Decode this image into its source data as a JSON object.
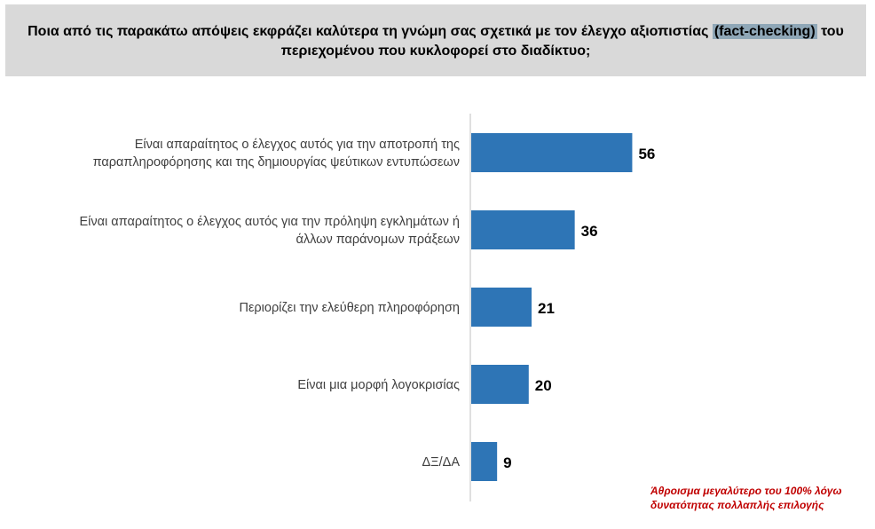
{
  "title": {
    "before": "Ποια από τις παρακάτω απόψεις εκφράζει καλύτερα τη γνώμη σας σχετικά με τον έλεγχο αξιοπιστίας ",
    "highlight": "(fact-checking)",
    "after": " του περιεχομένου που κυκλοφορεί στο διαδίκτυο;"
  },
  "footnote": {
    "line1": "Άθροισμα μεγαλύτερο του 100% λόγω",
    "line2": "δυνατότητας πολλαπλής επιλογής"
  },
  "colors": {
    "bar": "#2e75b6",
    "title_bg": "#d9d9d9",
    "highlight_bg": "#8fa7b7",
    "footnote": "#c00000",
    "axis": "#bfbfbf"
  },
  "chart_data": {
    "type": "bar",
    "orientation": "horizontal",
    "categories": [
      [
        "Είναι απαραίτητος ο έλεγχος αυτός για την αποτροπή της",
        "παραπληροφόρησης και της δημιουργίας ψεύτικων εντυπώσεων"
      ],
      [
        "Είναι απαραίτητος ο έλεγχος αυτός για την πρόληψη εγκλημάτων ή",
        "άλλων παράνομων πράξεων"
      ],
      [
        "Περιορίζει την ελεύθερη πληροφόρηση"
      ],
      [
        "Είναι μια μορφή λογοκρισίας"
      ],
      [
        "ΔΞ/ΔΑ"
      ]
    ],
    "values": [
      56,
      36,
      21,
      20,
      9
    ],
    "data_labels": [
      "56",
      "36",
      "21",
      "20",
      "9"
    ],
    "xlim": [
      0,
      100
    ],
    "grid": false,
    "legend": "none"
  }
}
